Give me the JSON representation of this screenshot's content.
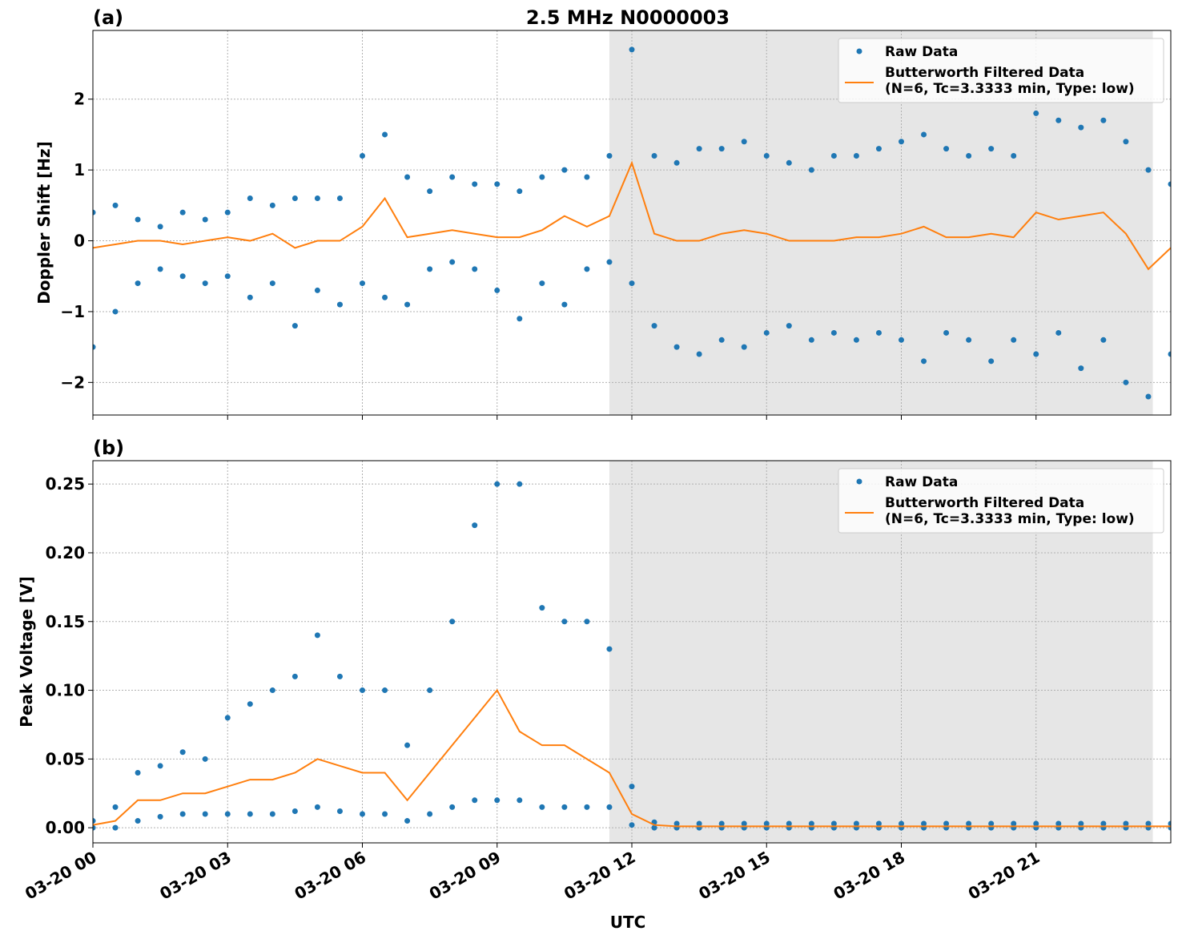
{
  "chart_data": [
    {
      "type": "line",
      "title": "2.5 MHz N0000003",
      "panel_label": "(a)",
      "ylabel": "Doppler Shift [Hz]",
      "xlim": [
        0,
        24
      ],
      "xticks": [
        0,
        3,
        6,
        9,
        12,
        15,
        18,
        21
      ],
      "ylim": [
        -2.46,
        2.97
      ],
      "yticks": [
        {
          "value": -2,
          "label": "−2"
        },
        {
          "value": -1,
          "label": "−1"
        },
        0,
        1,
        2
      ],
      "grid": true,
      "shade": [
        11.5,
        23.6
      ],
      "legend": "upper right",
      "x": [
        0,
        0.5,
        1,
        1.5,
        2,
        2.5,
        3,
        3.5,
        4,
        4.5,
        5,
        5.5,
        6,
        6.5,
        7,
        7.5,
        8,
        8.5,
        9,
        9.5,
        10,
        10.5,
        11,
        11.5,
        12,
        12.5,
        13,
        13.5,
        14,
        14.5,
        15,
        15.5,
        16,
        16.5,
        17,
        17.5,
        18,
        18.5,
        19,
        19.5,
        20,
        20.5,
        21,
        21.5,
        22,
        22.5,
        23,
        23.5,
        24
      ],
      "series": [
        {
          "name": "Raw Data",
          "kind": "scatter",
          "color": "#1f77b4",
          "x": [
            0,
            0.5,
            1,
            1.5,
            2,
            2.5,
            3,
            3.5,
            4,
            4.5,
            5,
            5.5,
            6,
            6.5,
            7,
            7.5,
            8,
            8.5,
            9,
            9.5,
            10,
            10.5,
            11,
            11.5,
            12,
            12.5,
            13,
            13.5,
            14,
            14.5,
            15,
            15.5,
            16,
            16.5,
            17,
            17.5,
            18,
            18.5,
            19,
            19.5,
            20,
            20.5,
            21,
            21.5,
            22,
            22.5,
            23,
            23.5,
            24,
            0,
            0.5,
            1,
            1.5,
            2,
            2.5,
            3,
            3.5,
            4,
            4.5,
            5,
            5.5,
            6,
            6.5,
            7,
            7.5,
            8,
            8.5,
            9,
            9.5,
            10,
            10.5,
            11,
            11.5,
            12,
            12.5,
            13,
            13.5,
            14,
            14.5,
            15,
            15.5,
            16,
            16.5,
            17,
            17.5,
            18,
            18.5,
            19,
            19.5,
            20,
            20.5,
            21,
            21.5,
            22,
            22.5,
            23,
            23.5,
            24
          ],
          "values": [
            0.4,
            0.5,
            0.3,
            0.2,
            0.4,
            0.3,
            0.4,
            0.6,
            0.5,
            0.6,
            0.6,
            0.6,
            1.2,
            1.5,
            0.9,
            0.7,
            0.9,
            0.8,
            0.8,
            0.7,
            0.9,
            1.0,
            0.9,
            1.2,
            2.7,
            1.2,
            1.1,
            1.3,
            1.3,
            1.4,
            1.2,
            1.1,
            1.0,
            1.2,
            1.2,
            1.3,
            1.4,
            1.5,
            1.3,
            1.2,
            1.3,
            1.2,
            1.8,
            1.7,
            1.6,
            1.7,
            1.4,
            1.0,
            0.8,
            -1.5,
            -1.0,
            -0.6,
            -0.4,
            -0.5,
            -0.6,
            -0.5,
            -0.8,
            -0.6,
            -1.2,
            -0.7,
            -0.9,
            -0.6,
            -0.8,
            -0.9,
            -0.4,
            -0.3,
            -0.4,
            -0.7,
            -1.1,
            -0.6,
            -0.9,
            -0.4,
            -0.3,
            -0.6,
            -1.2,
            -1.5,
            -1.6,
            -1.4,
            -1.5,
            -1.3,
            -1.2,
            -1.4,
            -1.3,
            -1.4,
            -1.3,
            -1.4,
            -1.7,
            -1.3,
            -1.4,
            -1.7,
            -1.4,
            -1.6,
            -1.3,
            -1.8,
            -1.4,
            -2.0,
            -2.2,
            -1.6
          ]
        },
        {
          "name": [
            "Butterworth Filtered Data",
            "(N=6, Tc=3.3333 min, Type: low)"
          ],
          "kind": "line",
          "color": "#ff7f0e",
          "values": [
            -0.1,
            -0.05,
            0,
            0,
            -0.05,
            0,
            0.05,
            0,
            0.1,
            -0.1,
            0,
            0,
            0.2,
            0.6,
            0.05,
            0.1,
            0.15,
            0.1,
            0.05,
            0.05,
            0.15,
            0.35,
            0.2,
            0.35,
            1.1,
            0.1,
            0,
            0,
            0.1,
            0.15,
            0.1,
            0,
            0,
            0,
            0.05,
            0.05,
            0.1,
            0.2,
            0.05,
            0.05,
            0.1,
            0.05,
            0.4,
            0.3,
            0.35,
            0.4,
            0.1,
            -0.4,
            -0.1
          ]
        }
      ]
    },
    {
      "type": "line",
      "panel_label": "(b)",
      "ylabel": "Peak Voltage [V]",
      "xlabel": "UTC",
      "xlim": [
        0,
        24
      ],
      "xticks": [
        {
          "value": 0,
          "label": "03-20 00"
        },
        {
          "value": 3,
          "label": "03-20 03"
        },
        {
          "value": 6,
          "label": "03-20 06"
        },
        {
          "value": 9,
          "label": "03-20 09"
        },
        {
          "value": 12,
          "label": "03-20 12"
        },
        {
          "value": 15,
          "label": "03-20 15"
        },
        {
          "value": 18,
          "label": "03-20 18"
        },
        {
          "value": 21,
          "label": "03-20 21"
        }
      ],
      "ylim": [
        -0.011,
        0.267
      ],
      "yticks": [
        {
          "value": 0,
          "label": "0.00"
        },
        {
          "value": 0.05,
          "label": "0.05"
        },
        {
          "value": 0.1,
          "label": "0.10"
        },
        {
          "value": 0.15,
          "label": "0.15"
        },
        {
          "value": 0.2,
          "label": "0.20"
        },
        {
          "value": 0.25,
          "label": "0.25"
        }
      ],
      "grid": true,
      "shade": [
        11.5,
        23.6
      ],
      "legend": "upper right",
      "x": [
        0,
        0.5,
        1,
        1.5,
        2,
        2.5,
        3,
        3.5,
        4,
        4.5,
        5,
        5.5,
        6,
        6.5,
        7,
        7.5,
        8,
        8.5,
        9,
        9.5,
        10,
        10.5,
        11,
        11.5,
        12,
        12.5,
        13,
        13.5,
        14,
        14.5,
        15,
        15.5,
        16,
        16.5,
        17,
        17.5,
        18,
        18.5,
        19,
        19.5,
        20,
        20.5,
        21,
        21.5,
        22,
        22.5,
        23,
        23.5,
        24
      ],
      "series": [
        {
          "name": "Raw Data",
          "kind": "scatter",
          "color": "#1f77b4",
          "x": [
            0,
            0.5,
            1,
            1.5,
            2,
            2.5,
            3,
            3.5,
            4,
            4.5,
            5,
            5.5,
            6,
            6.5,
            7,
            7.5,
            8,
            8.5,
            9,
            9.5,
            10,
            10.5,
            11,
            11.5,
            12,
            12.5,
            13,
            13.5,
            14,
            14.5,
            15,
            15.5,
            16,
            16.5,
            17,
            17.5,
            18,
            18.5,
            19,
            19.5,
            20,
            20.5,
            21,
            21.5,
            22,
            22.5,
            23,
            23.5,
            24,
            0,
            0.5,
            1,
            1.5,
            2,
            2.5,
            3,
            3.5,
            4,
            4.5,
            5,
            5.5,
            6,
            6.5,
            7,
            7.5,
            8,
            8.5,
            9,
            9.5,
            10,
            10.5,
            11,
            11.5,
            12,
            12.5,
            13,
            13.5,
            14,
            14.5,
            15,
            15.5,
            16,
            16.5,
            17,
            17.5,
            18,
            18.5,
            19,
            19.5,
            20,
            20.5,
            21,
            21.5,
            22,
            22.5,
            23,
            23.5,
            24
          ],
          "values": [
            0.005,
            0.015,
            0.04,
            0.045,
            0.055,
            0.05,
            0.08,
            0.09,
            0.1,
            0.11,
            0.14,
            0.11,
            0.1,
            0.1,
            0.06,
            0.1,
            0.15,
            0.22,
            0.25,
            0.25,
            0.16,
            0.15,
            0.15,
            0.13,
            0.03,
            0.004,
            0.003,
            0.003,
            0.003,
            0.003,
            0.003,
            0.003,
            0.003,
            0.003,
            0.003,
            0.003,
            0.003,
            0.003,
            0.003,
            0.003,
            0.003,
            0.003,
            0.003,
            0.003,
            0.003,
            0.003,
            0.003,
            0.003,
            0.003,
            0,
            0,
            0.005,
            0.008,
            0.01,
            0.01,
            0.01,
            0.01,
            0.01,
            0.012,
            0.015,
            0.012,
            0.01,
            0.01,
            0.005,
            0.01,
            0.015,
            0.02,
            0.02,
            0.02,
            0.015,
            0.015,
            0.015,
            0.015,
            0.002,
            0,
            0,
            0,
            0,
            0,
            0,
            0,
            0,
            0,
            0,
            0,
            0,
            0,
            0,
            0,
            0,
            0,
            0,
            0,
            0,
            0,
            0,
            0,
            0
          ]
        },
        {
          "name": [
            "Butterworth Filtered Data",
            "(N=6, Tc=3.3333 min, Type: low)"
          ],
          "kind": "line",
          "color": "#ff7f0e",
          "values": [
            0.002,
            0.005,
            0.02,
            0.02,
            0.025,
            0.025,
            0.03,
            0.035,
            0.035,
            0.04,
            0.05,
            0.045,
            0.04,
            0.04,
            0.02,
            0.04,
            0.06,
            0.08,
            0.1,
            0.07,
            0.06,
            0.06,
            0.05,
            0.04,
            0.01,
            0.002,
            0.001,
            0.001,
            0.001,
            0.001,
            0.001,
            0.001,
            0.001,
            0.001,
            0.001,
            0.001,
            0.001,
            0.001,
            0.001,
            0.001,
            0.001,
            0.001,
            0.001,
            0.001,
            0.001,
            0.001,
            0.001,
            0.001,
            0.001
          ]
        }
      ]
    }
  ]
}
